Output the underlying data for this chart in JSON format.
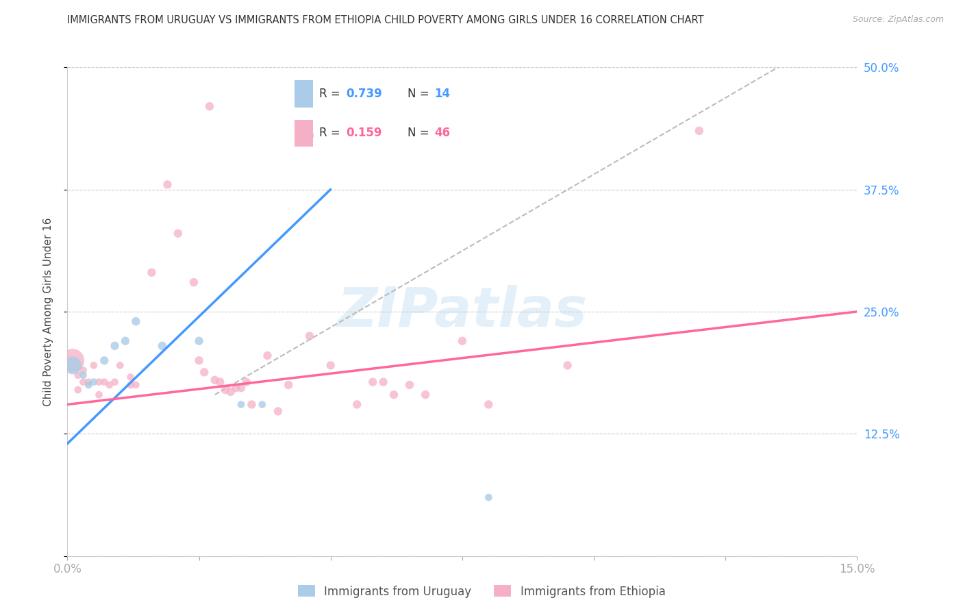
{
  "title": "IMMIGRANTS FROM URUGUAY VS IMMIGRANTS FROM ETHIOPIA CHILD POVERTY AMONG GIRLS UNDER 16 CORRELATION CHART",
  "source": "Source: ZipAtlas.com",
  "ylabel": "Child Poverty Among Girls Under 16",
  "xlim": [
    0.0,
    0.15
  ],
  "ylim": [
    0.0,
    0.5
  ],
  "yticks": [
    0.0,
    0.125,
    0.25,
    0.375,
    0.5
  ],
  "yticklabels": [
    "",
    "12.5%",
    "25.0%",
    "37.5%",
    "50.0%"
  ],
  "xticks": [
    0.0,
    0.025,
    0.05,
    0.075,
    0.1,
    0.125,
    0.15
  ],
  "xticklabels": [
    "0.0%",
    "",
    "",
    "",
    "",
    "",
    "15.0%"
  ],
  "grid_color": "#cccccc",
  "background_color": "#ffffff",
  "uruguay_color": "#aacce8",
  "ethiopia_color": "#f5b0c5",
  "uruguay_line_color": "#4499ff",
  "ethiopia_line_color": "#ff6699",
  "diag_line_color": "#bbbbbb",
  "R_uruguay": 0.739,
  "N_uruguay": 14,
  "R_ethiopia": 0.159,
  "N_ethiopia": 46,
  "uruguay_line": [
    [
      0.0,
      0.115
    ],
    [
      0.05,
      0.375
    ]
  ],
  "ethiopia_line": [
    [
      0.0,
      0.155
    ],
    [
      0.15,
      0.25
    ]
  ],
  "diag_line": [
    [
      0.028,
      0.165
    ],
    [
      0.135,
      0.5
    ]
  ],
  "uruguay_points": [
    [
      0.001,
      0.195
    ],
    [
      0.003,
      0.185
    ],
    [
      0.004,
      0.175
    ],
    [
      0.005,
      0.178
    ],
    [
      0.007,
      0.2
    ],
    [
      0.009,
      0.215
    ],
    [
      0.011,
      0.22
    ],
    [
      0.013,
      0.24
    ],
    [
      0.018,
      0.215
    ],
    [
      0.025,
      0.22
    ],
    [
      0.033,
      0.155
    ],
    [
      0.037,
      0.155
    ],
    [
      0.046,
      0.43
    ],
    [
      0.08,
      0.06
    ]
  ],
  "ethiopia_points": [
    [
      0.001,
      0.2
    ],
    [
      0.002,
      0.17
    ],
    [
      0.002,
      0.185
    ],
    [
      0.003,
      0.178
    ],
    [
      0.003,
      0.19
    ],
    [
      0.004,
      0.178
    ],
    [
      0.005,
      0.195
    ],
    [
      0.006,
      0.178
    ],
    [
      0.006,
      0.165
    ],
    [
      0.007,
      0.178
    ],
    [
      0.008,
      0.175
    ],
    [
      0.009,
      0.178
    ],
    [
      0.01,
      0.195
    ],
    [
      0.012,
      0.183
    ],
    [
      0.012,
      0.175
    ],
    [
      0.013,
      0.175
    ],
    [
      0.016,
      0.29
    ],
    [
      0.019,
      0.38
    ],
    [
      0.021,
      0.33
    ],
    [
      0.024,
      0.28
    ],
    [
      0.025,
      0.2
    ],
    [
      0.026,
      0.188
    ],
    [
      0.027,
      0.46
    ],
    [
      0.028,
      0.18
    ],
    [
      0.029,
      0.178
    ],
    [
      0.03,
      0.17
    ],
    [
      0.031,
      0.168
    ],
    [
      0.032,
      0.172
    ],
    [
      0.033,
      0.172
    ],
    [
      0.034,
      0.178
    ],
    [
      0.035,
      0.155
    ],
    [
      0.038,
      0.205
    ],
    [
      0.04,
      0.148
    ],
    [
      0.042,
      0.175
    ],
    [
      0.046,
      0.225
    ],
    [
      0.05,
      0.195
    ],
    [
      0.055,
      0.155
    ],
    [
      0.058,
      0.178
    ],
    [
      0.06,
      0.178
    ],
    [
      0.062,
      0.165
    ],
    [
      0.065,
      0.175
    ],
    [
      0.068,
      0.165
    ],
    [
      0.075,
      0.22
    ],
    [
      0.08,
      0.155
    ],
    [
      0.095,
      0.195
    ],
    [
      0.12,
      0.435
    ]
  ],
  "uruguay_sizes": [
    350,
    60,
    60,
    60,
    80,
    80,
    80,
    80,
    80,
    80,
    60,
    60,
    80,
    60
  ],
  "ethiopia_sizes": [
    600,
    60,
    60,
    60,
    60,
    60,
    60,
    60,
    60,
    60,
    60,
    60,
    60,
    60,
    60,
    60,
    80,
    80,
    80,
    80,
    80,
    80,
    80,
    80,
    80,
    80,
    80,
    80,
    80,
    80,
    80,
    80,
    80,
    80,
    80,
    80,
    80,
    80,
    80,
    80,
    80,
    80,
    80,
    80,
    80,
    80
  ]
}
